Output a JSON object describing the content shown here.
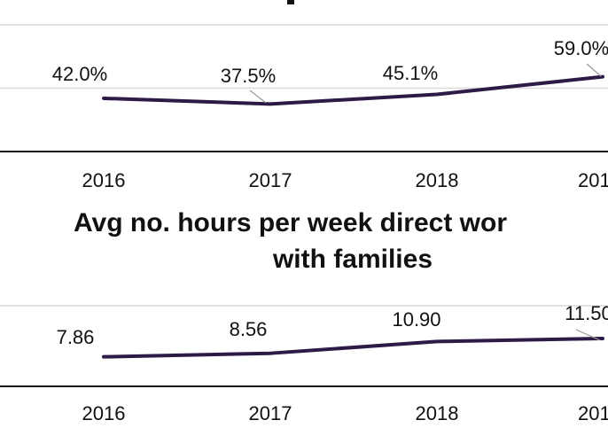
{
  "chart_data": [
    {
      "type": "line",
      "categories": [
        "2016",
        "2017",
        "2018",
        "201"
      ],
      "series": [
        {
          "color": "#2d1a47",
          "values": [
            42.0,
            37.5,
            45.1,
            59.0
          ],
          "value_labels": [
            "42.0%",
            "37.5%",
            "45.1%",
            "59.0%"
          ]
        }
      ],
      "ylim": [
        0,
        100
      ],
      "yticks": [
        50,
        100
      ],
      "grid": true
    },
    {
      "type": "line",
      "title": [
        "Avg no. hours per week direct wor",
        "with families"
      ],
      "categories": [
        "2016",
        "2017",
        "2018",
        "201"
      ],
      "series": [
        {
          "color": "#2d1a47",
          "values": [
            7.86,
            8.56,
            10.9,
            11.5
          ],
          "value_labels": [
            "7.86",
            "8.56",
            "10.90",
            "11.50"
          ]
        }
      ],
      "ylim": [
        2,
        18
      ],
      "yticks": [
        18
      ],
      "grid": true
    }
  ]
}
